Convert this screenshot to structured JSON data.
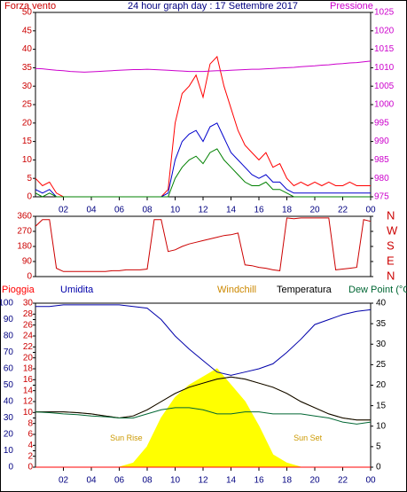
{
  "chart_data": [
    {
      "type": "line",
      "title": "24 hour graph day : 17 Settembre 2017",
      "ylabel": "Forza vento",
      "y2label": "Pressione",
      "x": [
        0,
        0.5,
        1,
        1.5,
        2,
        2.5,
        3,
        3.5,
        4,
        4.5,
        5,
        5.5,
        6,
        6.5,
        7,
        7.5,
        8,
        8.5,
        9,
        9.5,
        10,
        10.5,
        11,
        11.5,
        12,
        12.5,
        13,
        13.5,
        14,
        14.5,
        15,
        15.5,
        16,
        16.5,
        17,
        17.5,
        18,
        18.5,
        19,
        19.5,
        20,
        20.5,
        21,
        21.5,
        22,
        22.5,
        23,
        23.5,
        24
      ],
      "xlim": [
        0,
        24
      ],
      "xticks": [
        {
          "value": 2,
          "label": "02"
        },
        {
          "value": 4,
          "label": "04"
        },
        {
          "value": 6,
          "label": "06"
        },
        {
          "value": 8,
          "label": "08"
        },
        10,
        12,
        14,
        16,
        18,
        20,
        22,
        {
          "value": 24,
          "label": "00"
        }
      ],
      "ylim": [
        0,
        50
      ],
      "yticks": [
        0,
        5,
        10,
        15,
        20,
        25,
        30,
        35,
        40,
        45,
        50
      ],
      "y2lim": [
        975,
        1025
      ],
      "y2ticks": [
        975,
        980,
        985,
        990,
        995,
        1000,
        1005,
        1010,
        1015,
        1020,
        1025
      ],
      "series": [
        {
          "color": "#ff0000",
          "axis": "y",
          "values": [
            5,
            3,
            4,
            1,
            0,
            0,
            0,
            0,
            0,
            0,
            0,
            0,
            0,
            0,
            0,
            0,
            0,
            0,
            0,
            2,
            20,
            28,
            30,
            33,
            27,
            36,
            38,
            30,
            24,
            18,
            14,
            12,
            10,
            12,
            8,
            9,
            5,
            3,
            4,
            3,
            4,
            3,
            4,
            3,
            3,
            4,
            3,
            3,
            3
          ]
        },
        {
          "color": "#0000cc",
          "axis": "y",
          "values": [
            2,
            1,
            2,
            0,
            0,
            0,
            0,
            0,
            0,
            0,
            0,
            0,
            0,
            0,
            0,
            0,
            0,
            0,
            0,
            1,
            10,
            15,
            17,
            18,
            15,
            19,
            20,
            16,
            12,
            10,
            8,
            6,
            5,
            6,
            4,
            4,
            2,
            1,
            1,
            1,
            1,
            1,
            1,
            1,
            1,
            1,
            1,
            1,
            1
          ]
        },
        {
          "color": "#008000",
          "axis": "y",
          "values": [
            1,
            0,
            1,
            0,
            0,
            0,
            0,
            0,
            0,
            0,
            0,
            0,
            0,
            0,
            0,
            0,
            0,
            0,
            0,
            0,
            5,
            8,
            10,
            11,
            9,
            12,
            13,
            10,
            8,
            6,
            4,
            3,
            3,
            4,
            2,
            2,
            1,
            0,
            0,
            0,
            0,
            0,
            0,
            0,
            0,
            0,
            0,
            0,
            0
          ]
        },
        {
          "color": "#cc00cc",
          "axis": "y2",
          "values": [
            1009.8,
            1009.7,
            1009.5,
            1009.3,
            1009.2,
            1009,
            1008.9,
            1008.8,
            1008.9,
            1009,
            1009.1,
            1009.2,
            1009.3,
            1009.4,
            1009.5,
            1009.5,
            1009.6,
            1009.5,
            1009.4,
            1009.3,
            1009.2,
            1009.1,
            1009,
            1009,
            1009,
            1009.1,
            1009.2,
            1009.2,
            1009.3,
            1009.4,
            1009.5,
            1009.6,
            1009.6,
            1009.7,
            1009.8,
            1009.9,
            1010,
            1010.1,
            1010.3,
            1010.4,
            1010.5,
            1010.7,
            1010.8,
            1011,
            1011.1,
            1011.3,
            1011.4,
            1011.6,
            1011.8
          ]
        }
      ]
    },
    {
      "type": "line",
      "x": [
        0,
        0.5,
        1,
        1.5,
        2,
        2.5,
        3,
        3.5,
        4,
        4.5,
        5,
        5.5,
        6,
        6.5,
        7,
        7.5,
        8,
        8.5,
        9,
        9.5,
        10,
        10.5,
        11,
        11.5,
        12,
        12.5,
        13,
        13.5,
        14,
        14.5,
        15,
        15.5,
        16,
        16.5,
        17,
        17.5,
        18,
        18.5,
        19,
        19.5,
        20,
        20.5,
        21,
        21.5,
        22,
        22.5,
        23,
        23.5,
        24
      ],
      "xlim": [
        0,
        24
      ],
      "ylim": [
        0,
        360
      ],
      "yticks": [
        0,
        90,
        180,
        270,
        360
      ],
      "y2lim": [
        0,
        360
      ],
      "y2ticks": [
        {
          "value": 0,
          "label": "N"
        },
        {
          "value": 90,
          "label": "E"
        },
        {
          "value": 180,
          "label": "S"
        },
        {
          "value": 270,
          "label": "W"
        },
        {
          "value": 360,
          "label": "N"
        }
      ],
      "series": [
        {
          "color": "#cc0000",
          "axis": "y",
          "values": [
            300,
            340,
            340,
            50,
            30,
            30,
            30,
            30,
            30,
            30,
            30,
            35,
            35,
            40,
            40,
            40,
            45,
            340,
            340,
            150,
            160,
            180,
            195,
            205,
            215,
            225,
            235,
            245,
            250,
            260,
            70,
            65,
            55,
            50,
            40,
            35,
            350,
            345,
            350,
            350,
            350,
            350,
            350,
            40,
            45,
            50,
            55,
            340,
            330
          ]
        }
      ]
    },
    {
      "type": "line",
      "x": [
        0,
        1,
        2,
        3,
        4,
        5,
        6,
        7,
        8,
        9,
        10,
        11,
        12,
        13,
        14,
        15,
        16,
        17,
        18,
        19,
        20,
        21,
        22,
        23,
        24
      ],
      "xlim": [
        0,
        24
      ],
      "xticks": [
        {
          "value": 2,
          "label": "02"
        },
        {
          "value": 4,
          "label": "04"
        },
        {
          "value": 6,
          "label": "06"
        },
        {
          "value": 8,
          "label": "08"
        },
        10,
        12,
        14,
        16,
        18,
        20,
        22,
        {
          "value": 24,
          "label": "00"
        }
      ],
      "ylim": [
        0,
        30
      ],
      "yticks": [
        0,
        2,
        4,
        6,
        8,
        10,
        12,
        14,
        16,
        18,
        20,
        22,
        24,
        26,
        28,
        30
      ],
      "y3lim": [
        0,
        100
      ],
      "y3ticks": [
        0,
        10,
        20,
        30,
        40,
        50,
        60,
        70,
        80,
        90,
        100
      ],
      "y2lim": [
        0,
        40
      ],
      "y2ticks": [
        0,
        5,
        10,
        15,
        20,
        25,
        30,
        35,
        40
      ],
      "annotations": [
        {
          "text": "Sun Rise",
          "x": 6.5,
          "y": 7
        },
        {
          "text": "Sun Set",
          "x": 19.5,
          "y": 7
        }
      ],
      "series": [
        {
          "color": "#ffff00",
          "axis": "y2",
          "fill": true,
          "values": [
            0,
            0,
            0,
            0,
            0,
            0,
            0,
            1,
            5,
            12,
            17,
            20,
            22,
            24,
            20,
            16,
            10,
            3,
            1,
            0,
            0,
            0,
            0,
            0,
            0
          ]
        },
        {
          "name": "Pioggia",
          "color": "#ff0000",
          "axis": "y",
          "values": [
            0,
            0,
            0,
            0,
            0,
            0,
            0,
            0,
            0,
            0,
            0,
            0,
            0,
            0,
            0,
            0,
            0,
            0,
            0,
            0,
            0,
            0,
            0,
            0,
            0
          ]
        },
        {
          "name": "Umidita",
          "color": "#0000aa",
          "axis": "y3",
          "values": [
            98,
            98,
            99,
            99,
            99,
            99,
            99,
            98,
            97,
            90,
            80,
            72,
            65,
            58,
            56,
            58,
            60,
            63,
            70,
            78,
            87,
            90,
            93,
            95,
            96
          ]
        },
        {
          "name": "Windchill",
          "color": "#cc8800",
          "axis": "y2",
          "values": [
            13.5,
            13.5,
            13.5,
            13.3,
            13,
            12.5,
            12,
            12.5,
            14,
            16,
            18,
            19.5,
            20.5,
            21.5,
            22,
            21.5,
            20.5,
            19.5,
            18,
            16,
            14.5,
            13,
            12,
            11.5,
            11.5
          ]
        },
        {
          "name": "Temperatura",
          "color": "#000000",
          "axis": "y2",
          "values": [
            13.5,
            13.5,
            13.5,
            13.3,
            13,
            12.5,
            12,
            12.5,
            14,
            16,
            18,
            19.5,
            20.5,
            21.5,
            22,
            21.5,
            20.5,
            19.5,
            18,
            16,
            14.5,
            13,
            12,
            11.5,
            11.5
          ]
        },
        {
          "name": "Dew Point (°C",
          "color": "#006633",
          "axis": "y2",
          "values": [
            13.5,
            13.3,
            13,
            12.8,
            12.5,
            12.3,
            12,
            12,
            13,
            14,
            14.5,
            14.5,
            14,
            13,
            13,
            13.5,
            13.5,
            13,
            13,
            13,
            12.5,
            12,
            11,
            10.5,
            11
          ]
        }
      ]
    }
  ]
}
